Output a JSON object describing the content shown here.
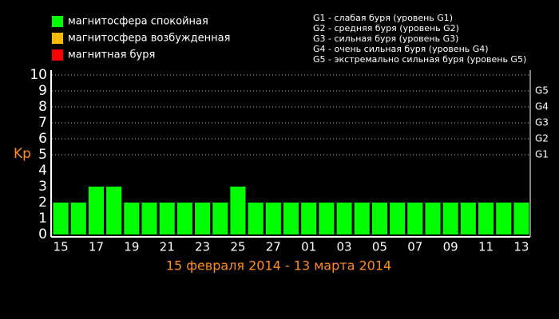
{
  "chart_data": {
    "type": "bar",
    "legend": [
      {
        "name": "магнитосфера спокойная",
        "color": "#00ff00"
      },
      {
        "name": "магнитосфера возбужденная",
        "color": "#ffbb00"
      },
      {
        "name": "магнитная буря",
        "color": "#ff0000"
      }
    ],
    "notes": [
      "G1 - слабая буря (уровень G1)",
      "G2 - средняя буря (уровень G2)",
      "G3 - сильная буря (уровень G3)",
      "G4 - очень сильная буря (уровень G4)",
      "G5 - экстремально сильная буря (уровень G5)"
    ],
    "y_label": "Kp",
    "x_label": "15 февраля 2014 - 13 марта 2014",
    "categories": [
      "15",
      null,
      "17",
      null,
      "19",
      null,
      "21",
      null,
      "23",
      null,
      "25",
      null,
      "27",
      null,
      "01",
      null,
      "03",
      null,
      "05",
      null,
      "07",
      null,
      "09",
      null,
      "11",
      null,
      "13"
    ],
    "values": [
      2,
      2,
      3,
      3,
      2,
      2,
      2,
      2,
      2,
      2,
      3,
      2,
      2,
      2,
      2,
      2,
      2,
      2,
      2,
      2,
      2,
      2,
      2,
      2,
      2,
      2,
      2
    ],
    "color": "#00ff00",
    "ylim": [
      0,
      10
    ],
    "yticks": [
      0,
      1,
      2,
      3,
      4,
      5,
      6,
      7,
      8,
      9,
      10
    ],
    "y2lim": [
      0,
      10
    ],
    "y2ticks": [
      {
        "value": 5,
        "label": "G1"
      },
      {
        "value": 6,
        "label": "G2"
      },
      {
        "value": 7,
        "label": "G3"
      },
      {
        "value": 8,
        "label": "G4"
      },
      {
        "value": 9,
        "label": "G5"
      }
    ],
    "grid": true
  }
}
